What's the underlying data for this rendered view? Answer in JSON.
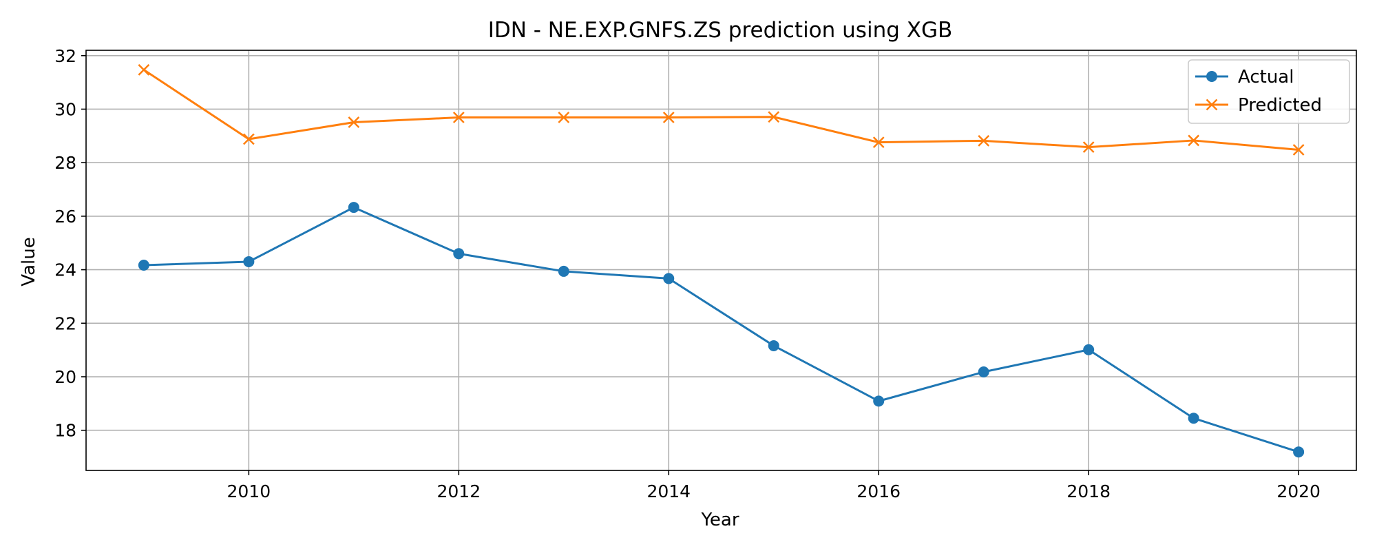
{
  "chart_data": {
    "type": "line",
    "title": "IDN - NE.EXP.GNFS.ZS prediction using XGB",
    "xlabel": "Year",
    "ylabel": "Value",
    "xlim": [
      2008.45,
      2020.55
    ],
    "ylim": [
      16.5,
      32.2
    ],
    "xticks": [
      2010,
      2012,
      2014,
      2016,
      2018,
      2020
    ],
    "yticks": [
      18,
      20,
      22,
      24,
      26,
      28,
      30,
      32
    ],
    "grid": true,
    "legend_position": "top-right",
    "x": [
      2009,
      2010,
      2011,
      2012,
      2013,
      2014,
      2015,
      2016,
      2017,
      2018,
      2019,
      2020
    ],
    "series": [
      {
        "name": "Actual",
        "marker": "circle",
        "color": "#1f77b4",
        "values": [
          24.17,
          24.3,
          26.33,
          24.6,
          23.94,
          23.67,
          21.16,
          19.09,
          20.18,
          21.01,
          18.45,
          17.19
        ]
      },
      {
        "name": "Predicted",
        "marker": "x",
        "color": "#ff7f0e",
        "values": [
          31.47,
          28.88,
          29.51,
          29.69,
          29.69,
          29.69,
          29.71,
          28.76,
          28.82,
          28.58,
          28.83,
          28.48
        ]
      }
    ]
  }
}
